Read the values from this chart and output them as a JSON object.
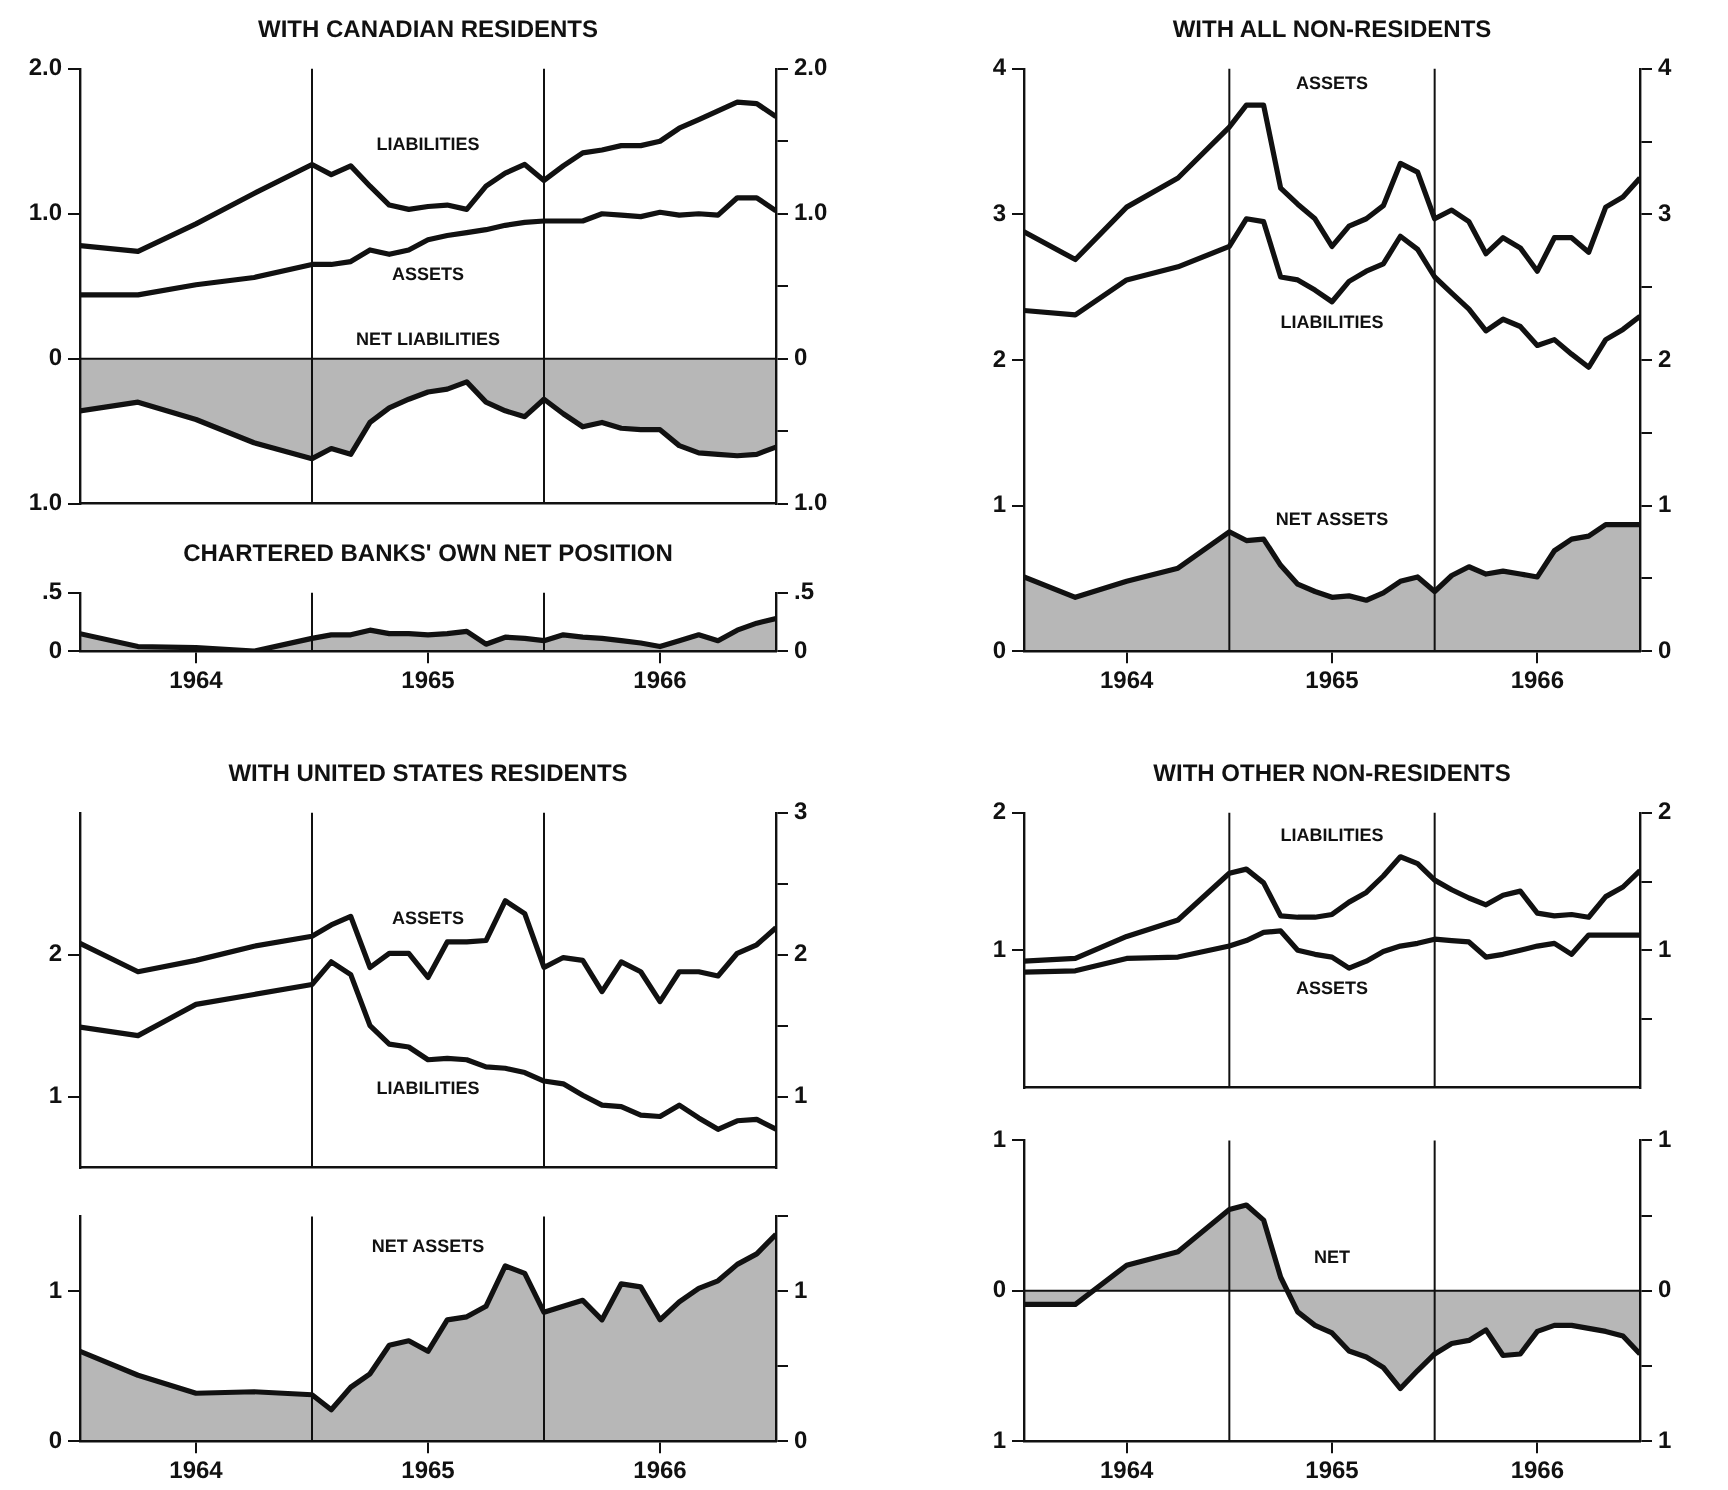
{
  "chart_data": [
    {
      "type": "line",
      "title": "WITH CANADIAN RESIDENTS",
      "x": [
        1964,
        1964.25,
        1964.5,
        1964.75,
        1965,
        1965.083,
        1965.167,
        1965.25,
        1965.333,
        1965.417,
        1965.5,
        1965.583,
        1965.667,
        1965.75,
        1965.833,
        1965.917,
        1966,
        1966.083,
        1966.167,
        1966.25,
        1966.333,
        1966.417,
        1966.5,
        1966.583,
        1966.667,
        1966.75,
        1966.833,
        1966.917,
        1967
      ],
      "xlim": [
        1964,
        1967
      ],
      "ylim": [
        -1,
        2
      ],
      "yticks": [
        {
          "value": 2,
          "label": "2.0"
        },
        {
          "value": 1,
          "label": "1.0"
        },
        0,
        {
          "value": -1,
          "label": "1.0"
        }
      ],
      "y2lim": [
        -1,
        2
      ],
      "y2ticks": [
        {
          "value": 2,
          "label": "2.0"
        },
        {
          "value": 1.5,
          "label": null
        },
        {
          "value": 1,
          "label": "1.0"
        },
        {
          "value": 0.5,
          "label": null
        },
        0,
        {
          "value": -0.5,
          "label": null
        },
        {
          "value": -1,
          "label": "1.0"
        }
      ],
      "tick_labels": "y",
      "ref_lines": [
        {
          "axis": "x",
          "value": 1965
        },
        {
          "axis": "x",
          "value": 1966
        },
        {
          "axis": "y",
          "value": 0
        }
      ],
      "series": [
        {
          "name": "LIABILITIES",
          "color": "#111111",
          "values": [
            0.78,
            0.74,
            0.93,
            1.14,
            1.34,
            1.27,
            1.33,
            1.19,
            1.06,
            1.03,
            1.05,
            1.06,
            1.03,
            1.19,
            1.28,
            1.34,
            1.23,
            1.33,
            1.42,
            1.44,
            1.47,
            1.47,
            1.5,
            1.59,
            1.65,
            1.71,
            1.77,
            1.76,
            1.67
          ]
        },
        {
          "name": "ASSETS",
          "color": "#111111",
          "values": [
            0.44,
            0.44,
            0.51,
            0.56,
            0.65,
            0.65,
            0.67,
            0.75,
            0.72,
            0.75,
            0.82,
            0.85,
            0.87,
            0.89,
            0.92,
            0.94,
            0.95,
            0.95,
            0.95,
            1.0,
            0.99,
            0.98,
            1.01,
            0.99,
            1.0,
            0.99,
            1.11,
            1.11,
            1.02
          ]
        },
        {
          "name": "NET LIABILITIES",
          "type": "area",
          "color": "#111111",
          "values": [
            -0.36,
            -0.3,
            -0.42,
            -0.58,
            -0.69,
            -0.62,
            -0.66,
            -0.44,
            -0.34,
            -0.28,
            -0.23,
            -0.21,
            -0.16,
            -0.3,
            -0.36,
            -0.4,
            -0.28,
            -0.38,
            -0.47,
            -0.44,
            -0.48,
            -0.49,
            -0.49,
            -0.6,
            -0.65,
            -0.66,
            -0.67,
            -0.66,
            -0.61
          ]
        }
      ]
    },
    {
      "type": "area",
      "title": "CHARTERED BANKS' OWN NET POSITION",
      "x": [
        1964,
        1964.25,
        1964.5,
        1964.75,
        1965,
        1965.083,
        1965.167,
        1965.25,
        1965.333,
        1965.417,
        1965.5,
        1965.583,
        1965.667,
        1965.75,
        1965.833,
        1965.917,
        1966,
        1966.083,
        1966.167,
        1966.25,
        1966.333,
        1966.417,
        1966.5,
        1966.583,
        1966.667,
        1966.75,
        1966.833,
        1966.917,
        1967
      ],
      "xlim": [
        1964,
        1967
      ],
      "xticks": [
        {
          "value": 1964.5,
          "label": "1964"
        },
        {
          "value": 1965.5,
          "label": "1965"
        },
        {
          "value": 1966.5,
          "label": "1966"
        }
      ],
      "ylim": [
        0,
        0.5
      ],
      "yticks": [
        {
          "value": 0.5,
          "label": ".5"
        },
        0
      ],
      "y2lim": [
        0,
        0.5
      ],
      "y2ticks": [
        {
          "value": 0.5,
          "label": ".5"
        },
        0
      ],
      "ref_lines": [
        {
          "axis": "x",
          "value": 1965
        },
        {
          "axis": "x",
          "value": 1966
        }
      ],
      "series": [
        {
          "color": "#111111",
          "values": [
            0.15,
            0.04,
            0.03,
            0.0,
            0.11,
            0.14,
            0.14,
            0.18,
            0.15,
            0.15,
            0.14,
            0.15,
            0.17,
            0.06,
            0.12,
            0.11,
            0.09,
            0.14,
            0.12,
            0.11,
            0.09,
            0.07,
            0.04,
            0.09,
            0.14,
            0.09,
            0.18,
            0.24,
            0.28
          ]
        }
      ]
    },
    {
      "type": "line",
      "title": "WITH ALL NON-RESIDENTS",
      "x": [
        1964,
        1964.25,
        1964.5,
        1964.75,
        1965,
        1965.083,
        1965.167,
        1965.25,
        1965.333,
        1965.417,
        1965.5,
        1965.583,
        1965.667,
        1965.75,
        1965.833,
        1965.917,
        1966,
        1966.083,
        1966.167,
        1966.25,
        1966.333,
        1966.417,
        1966.5,
        1966.583,
        1966.667,
        1966.75,
        1966.833,
        1966.917,
        1967
      ],
      "xlim": [
        1964,
        1967
      ],
      "xticks": [
        {
          "value": 1964.5,
          "label": "1964"
        },
        {
          "value": 1965.5,
          "label": "1965"
        },
        {
          "value": 1966.5,
          "label": "1966"
        }
      ],
      "ylim": [
        0,
        4
      ],
      "yticks": [
        4,
        3,
        2,
        1,
        0
      ],
      "y2lim": [
        0,
        4
      ],
      "y2ticks": [
        4,
        {
          "value": 3.5,
          "label": null
        },
        3,
        {
          "value": 2.5,
          "label": null
        },
        2,
        {
          "value": 1.5,
          "label": null
        },
        1,
        {
          "value": 0.5,
          "label": null
        },
        0
      ],
      "ref_lines": [
        {
          "axis": "x",
          "value": 1965
        },
        {
          "axis": "x",
          "value": 1966
        }
      ],
      "series": [
        {
          "name": "ASSETS",
          "color": "#111111",
          "values": [
            2.88,
            2.69,
            3.05,
            3.25,
            3.6,
            3.75,
            3.75,
            3.18,
            3.07,
            2.97,
            2.78,
            2.92,
            2.97,
            3.06,
            3.35,
            3.29,
            2.97,
            3.03,
            2.95,
            2.73,
            2.84,
            2.77,
            2.61,
            2.84,
            2.84,
            2.74,
            3.05,
            3.12,
            3.25
          ]
        },
        {
          "name": "LIABILITIES",
          "color": "#111111",
          "values": [
            2.34,
            2.31,
            2.55,
            2.64,
            2.78,
            2.97,
            2.95,
            2.57,
            2.55,
            2.48,
            2.4,
            2.54,
            2.61,
            2.66,
            2.85,
            2.76,
            2.57,
            2.46,
            2.35,
            2.2,
            2.28,
            2.23,
            2.1,
            2.14,
            2.04,
            1.95,
            2.14,
            2.21,
            2.3
          ]
        },
        {
          "name": "NET ASSETS",
          "type": "area",
          "color": "#111111",
          "values": [
            0.51,
            0.37,
            0.48,
            0.57,
            0.82,
            0.76,
            0.77,
            0.59,
            0.46,
            0.41,
            0.37,
            0.38,
            0.35,
            0.4,
            0.48,
            0.51,
            0.41,
            0.52,
            0.58,
            0.53,
            0.55,
            0.53,
            0.51,
            0.69,
            0.77,
            0.79,
            0.87,
            0.87,
            0.87
          ]
        }
      ]
    },
    {
      "type": "line",
      "title": "WITH UNITED STATES RESIDENTS",
      "x": [
        1964,
        1964.25,
        1964.5,
        1964.75,
        1965,
        1965.083,
        1965.167,
        1965.25,
        1965.333,
        1965.417,
        1965.5,
        1965.583,
        1965.667,
        1965.75,
        1965.833,
        1965.917,
        1966,
        1966.083,
        1966.167,
        1966.25,
        1966.333,
        1966.417,
        1966.5,
        1966.583,
        1966.667,
        1966.75,
        1966.833,
        1966.917,
        1967
      ],
      "xlim": [
        1964,
        1967
      ],
      "ylim": [
        0.5,
        3
      ],
      "yticks": [
        2,
        1
      ],
      "y2lim": [
        0.5,
        3
      ],
      "y2ticks": [
        3,
        {
          "value": 2.5,
          "label": null
        },
        2,
        {
          "value": 1.5,
          "label": null
        },
        1
      ],
      "tick_labels": "y",
      "ref_lines": [
        {
          "axis": "x",
          "value": 1965
        },
        {
          "axis": "x",
          "value": 1966
        }
      ],
      "series": [
        {
          "name": "ASSETS",
          "color": "#111111",
          "values": [
            2.08,
            1.88,
            1.96,
            2.06,
            2.13,
            2.21,
            2.27,
            1.91,
            2.01,
            2.01,
            1.84,
            2.09,
            2.09,
            2.1,
            2.38,
            2.29,
            1.91,
            1.98,
            1.96,
            1.74,
            1.95,
            1.88,
            1.67,
            1.88,
            1.88,
            1.85,
            2.01,
            2.07,
            2.19
          ]
        },
        {
          "name": "LIABILITIES",
          "color": "#111111",
          "values": [
            1.49,
            1.43,
            1.65,
            1.72,
            1.79,
            1.95,
            1.86,
            1.5,
            1.37,
            1.35,
            1.26,
            1.27,
            1.26,
            1.21,
            1.2,
            1.17,
            1.11,
            1.09,
            1.01,
            0.94,
            0.93,
            0.87,
            0.86,
            0.94,
            0.85,
            0.77,
            0.83,
            0.84,
            0.77
          ]
        }
      ]
    },
    {
      "type": "area",
      "x": [
        1964,
        1964.25,
        1964.5,
        1964.75,
        1965,
        1965.083,
        1965.167,
        1965.25,
        1965.333,
        1965.417,
        1965.5,
        1965.583,
        1965.667,
        1965.75,
        1965.833,
        1965.917,
        1966,
        1966.083,
        1966.167,
        1966.25,
        1966.333,
        1966.417,
        1966.5,
        1966.583,
        1966.667,
        1966.75,
        1966.833,
        1966.917,
        1967
      ],
      "xlim": [
        1964,
        1967
      ],
      "xticks": [
        {
          "value": 1964.5,
          "label": "1964"
        },
        {
          "value": 1965.5,
          "label": "1965"
        },
        {
          "value": 1966.5,
          "label": "1966"
        }
      ],
      "ylim": [
        0,
        1.5
      ],
      "yticks": [
        1,
        0
      ],
      "y2lim": [
        0,
        1.5
      ],
      "y2ticks": [
        {
          "value": 1.5,
          "label": null
        },
        1,
        {
          "value": 0.5,
          "label": null
        },
        0
      ],
      "ref_lines": [
        {
          "axis": "x",
          "value": 1965
        },
        {
          "axis": "x",
          "value": 1966
        }
      ],
      "series": [
        {
          "name": "NET ASSETS",
          "color": "#111111",
          "values": [
            0.6,
            0.44,
            0.32,
            0.33,
            0.31,
            0.21,
            0.36,
            0.45,
            0.64,
            0.67,
            0.6,
            0.81,
            0.83,
            0.9,
            1.17,
            1.12,
            0.86,
            0.9,
            0.94,
            0.81,
            1.05,
            1.03,
            0.81,
            0.93,
            1.02,
            1.07,
            1.18,
            1.25,
            1.38
          ]
        }
      ]
    },
    {
      "type": "line",
      "title": "WITH OTHER NON-RESIDENTS",
      "x": [
        1964,
        1964.25,
        1964.5,
        1964.75,
        1965,
        1965.083,
        1965.167,
        1965.25,
        1965.333,
        1965.417,
        1965.5,
        1965.583,
        1965.667,
        1965.75,
        1965.833,
        1965.917,
        1966,
        1966.083,
        1966.167,
        1966.25,
        1966.333,
        1966.417,
        1966.5,
        1966.583,
        1966.667,
        1966.75,
        1966.833,
        1966.917,
        1967
      ],
      "xlim": [
        1964,
        1967
      ],
      "ylim": [
        0,
        2
      ],
      "yticks": [
        2,
        1
      ],
      "y2lim": [
        0,
        2
      ],
      "y2ticks": [
        2,
        {
          "value": 1.5,
          "label": null
        },
        1,
        {
          "value": 0.5,
          "label": null
        }
      ],
      "tick_labels": "y",
      "ref_lines": [
        {
          "axis": "x",
          "value": 1965
        },
        {
          "axis": "x",
          "value": 1966
        }
      ],
      "series": [
        {
          "name": "LIABILITIES",
          "color": "#111111",
          "values": [
            0.92,
            0.94,
            1.1,
            1.22,
            1.56,
            1.59,
            1.49,
            1.25,
            1.24,
            1.24,
            1.26,
            1.35,
            1.42,
            1.54,
            1.68,
            1.63,
            1.51,
            1.44,
            1.38,
            1.33,
            1.4,
            1.43,
            1.27,
            1.25,
            1.26,
            1.24,
            1.39,
            1.46,
            1.58
          ]
        },
        {
          "name": "ASSETS",
          "color": "#111111",
          "values": [
            0.84,
            0.85,
            0.94,
            0.95,
            1.03,
            1.07,
            1.13,
            1.14,
            1.0,
            0.97,
            0.95,
            0.87,
            0.92,
            0.99,
            1.03,
            1.05,
            1.08,
            1.07,
            1.06,
            0.95,
            0.97,
            1.0,
            1.03,
            1.05,
            0.97,
            1.11,
            1.11,
            1.11,
            1.11
          ]
        }
      ]
    },
    {
      "type": "area",
      "x": [
        1964,
        1964.25,
        1964.5,
        1964.75,
        1965,
        1965.083,
        1965.167,
        1965.25,
        1965.333,
        1965.417,
        1965.5,
        1965.583,
        1965.667,
        1965.75,
        1965.833,
        1965.917,
        1966,
        1966.083,
        1966.167,
        1966.25,
        1966.333,
        1966.417,
        1966.5,
        1966.583,
        1966.667,
        1966.75,
        1966.833,
        1966.917,
        1967
      ],
      "xlim": [
        1964,
        1967
      ],
      "xticks": [
        {
          "value": 1964.5,
          "label": "1964"
        },
        {
          "value": 1965.5,
          "label": "1965"
        },
        {
          "value": 1966.5,
          "label": "1966"
        }
      ],
      "ylim": [
        -1,
        1
      ],
      "yticks": [
        1,
        0,
        {
          "value": -1,
          "label": "1"
        }
      ],
      "y2lim": [
        -1,
        1
      ],
      "y2ticks": [
        1,
        {
          "value": 0.5,
          "label": null
        },
        0,
        {
          "value": -0.5,
          "label": null
        },
        {
          "value": -1,
          "label": "1"
        }
      ],
      "ref_lines": [
        {
          "axis": "x",
          "value": 1965
        },
        {
          "axis": "x",
          "value": 1966
        },
        {
          "axis": "y",
          "value": 0
        }
      ],
      "series": [
        {
          "name": "NET",
          "color": "#111111",
          "values": [
            -0.09,
            -0.09,
            0.17,
            0.26,
            0.54,
            0.57,
            0.47,
            0.09,
            -0.14,
            -0.23,
            -0.28,
            -0.4,
            -0.44,
            -0.51,
            -0.65,
            -0.53,
            -0.42,
            -0.35,
            -0.33,
            -0.26,
            -0.43,
            -0.42,
            -0.27,
            -0.23,
            -0.23,
            -0.25,
            -0.27,
            -0.3,
            -0.42
          ]
        }
      ]
    }
  ]
}
